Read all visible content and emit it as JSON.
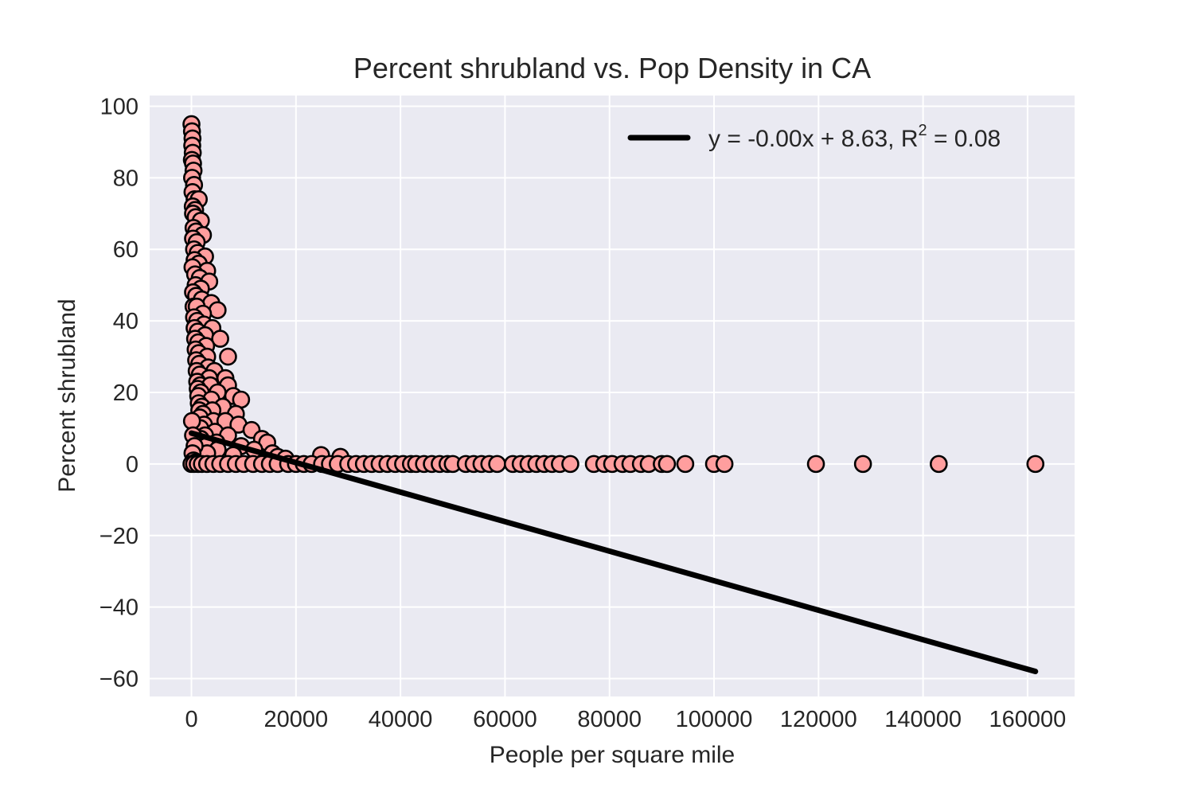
{
  "chart_data": {
    "type": "scatter",
    "title": "Percent shrubland vs. Pop Density in CA",
    "xlabel": "People per square mile",
    "ylabel": "Percent shrubland",
    "xlim": [
      -8000,
      169000
    ],
    "ylim": [
      -65,
      103
    ],
    "xticks": [
      0,
      20000,
      40000,
      60000,
      80000,
      100000,
      120000,
      140000,
      160000
    ],
    "yticks": [
      100,
      80,
      60,
      40,
      20,
      0,
      -20,
      -40,
      -60
    ],
    "xtick_labels": [
      "0",
      "20000",
      "40000",
      "60000",
      "80000",
      "100000",
      "120000",
      "140000",
      "160000"
    ],
    "ytick_labels": [
      "100",
      "80",
      "60",
      "40",
      "20",
      "0",
      "−20",
      "−40",
      "−60"
    ],
    "grid": true,
    "legend_position": "top-right",
    "legend": {
      "prefix": "y = -0.00x + 8.63, R",
      "superscript": "2",
      "suffix": " = 0.08"
    },
    "colors": {
      "background": "#eaeaf2",
      "marker_fill": "#ff9e9e",
      "marker_edge": "#000000",
      "fit_line": "#000000"
    },
    "fit_line": {
      "x": [
        0,
        161500
      ],
      "y": [
        8.63,
        -58
      ]
    },
    "series": [
      {
        "points": [
          [
            0,
            95
          ],
          [
            100,
            93
          ],
          [
            200,
            91
          ],
          [
            150,
            89
          ],
          [
            250,
            87
          ],
          [
            80,
            85
          ],
          [
            300,
            84
          ],
          [
            400,
            82
          ],
          [
            120,
            80
          ],
          [
            500,
            78
          ],
          [
            200,
            76
          ],
          [
            600,
            74
          ],
          [
            1400,
            74
          ],
          [
            250,
            72
          ],
          [
            700,
            71
          ],
          [
            300,
            70
          ],
          [
            800,
            69
          ],
          [
            1800,
            68
          ],
          [
            400,
            66
          ],
          [
            900,
            65
          ],
          [
            2200,
            64
          ],
          [
            300,
            63
          ],
          [
            1000,
            62
          ],
          [
            500,
            60
          ],
          [
            1200,
            59
          ],
          [
            2600,
            58
          ],
          [
            600,
            57
          ],
          [
            1400,
            56
          ],
          [
            200,
            55
          ],
          [
            3000,
            54
          ],
          [
            700,
            53
          ],
          [
            1600,
            52
          ],
          [
            3400,
            51
          ],
          [
            800,
            50
          ],
          [
            1800,
            49
          ],
          [
            300,
            48
          ],
          [
            900,
            47
          ],
          [
            2000,
            46
          ],
          [
            3800,
            45
          ],
          [
            400,
            44
          ],
          [
            1000,
            44
          ],
          [
            5000,
            43
          ],
          [
            2200,
            42
          ],
          [
            500,
            41
          ],
          [
            1100,
            40
          ],
          [
            2400,
            39
          ],
          [
            600,
            38
          ],
          [
            4000,
            38
          ],
          [
            1200,
            37
          ],
          [
            2600,
            36
          ],
          [
            700,
            35
          ],
          [
            5500,
            35
          ],
          [
            1300,
            34
          ],
          [
            2800,
            33
          ],
          [
            800,
            32
          ],
          [
            1400,
            31
          ],
          [
            3000,
            30
          ],
          [
            7000,
            30
          ],
          [
            900,
            29
          ],
          [
            1500,
            28
          ],
          [
            3200,
            27
          ],
          [
            1000,
            26
          ],
          [
            4400,
            26
          ],
          [
            1600,
            25
          ],
          [
            3400,
            24
          ],
          [
            6500,
            24
          ],
          [
            1100,
            23
          ],
          [
            1700,
            22
          ],
          [
            3600,
            22
          ],
          [
            7000,
            22
          ],
          [
            1200,
            21
          ],
          [
            1800,
            20
          ],
          [
            5000,
            20
          ],
          [
            8000,
            19
          ],
          [
            1300,
            19
          ],
          [
            3800,
            18
          ],
          [
            9500,
            18
          ],
          [
            1400,
            17
          ],
          [
            2000,
            16
          ],
          [
            6000,
            16
          ],
          [
            1500,
            15
          ],
          [
            4000,
            15
          ],
          [
            8500,
            14
          ],
          [
            2200,
            14
          ],
          [
            1600,
            13
          ],
          [
            4200,
            12
          ],
          [
            6500,
            12
          ],
          [
            2400,
            11
          ],
          [
            9000,
            11
          ],
          [
            1700,
            10
          ],
          [
            11500,
            9.5
          ],
          [
            4500,
            9
          ],
          [
            2600,
            8
          ],
          [
            7000,
            8
          ],
          [
            13500,
            7
          ],
          [
            1800,
            7
          ],
          [
            14500,
            6
          ],
          [
            4800,
            6
          ],
          [
            2800,
            5
          ],
          [
            9500,
            5
          ],
          [
            12000,
            4
          ],
          [
            5000,
            4
          ],
          [
            3000,
            3
          ],
          [
            15500,
            3
          ],
          [
            8000,
            2.5
          ],
          [
            16500,
            2
          ],
          [
            18000,
            1.5
          ],
          [
            24800,
            2.5
          ],
          [
            28500,
            2
          ],
          [
            100,
            12
          ],
          [
            300,
            8
          ],
          [
            600,
            5
          ],
          [
            200,
            3
          ],
          [
            400,
            1
          ],
          [
            800,
            0.5
          ],
          [
            0,
            0
          ],
          [
            500,
            0
          ],
          [
            1200,
            0
          ],
          [
            2000,
            0
          ],
          [
            3000,
            0
          ],
          [
            4200,
            0
          ],
          [
            5500,
            0
          ],
          [
            7000,
            0
          ],
          [
            8500,
            0
          ],
          [
            10000,
            0
          ],
          [
            11800,
            0
          ],
          [
            13500,
            0
          ],
          [
            15000,
            0
          ],
          [
            16500,
            0
          ],
          [
            18500,
            0
          ],
          [
            20000,
            0
          ],
          [
            21500,
            0
          ],
          [
            23000,
            0
          ],
          [
            25000,
            0
          ],
          [
            26500,
            0
          ],
          [
            28000,
            0
          ],
          [
            30000,
            0
          ],
          [
            31500,
            0
          ],
          [
            33000,
            0
          ],
          [
            34500,
            0
          ],
          [
            36000,
            0
          ],
          [
            37500,
            0
          ],
          [
            39000,
            0
          ],
          [
            40500,
            0
          ],
          [
            42000,
            0
          ],
          [
            43000,
            0
          ],
          [
            44500,
            0
          ],
          [
            46000,
            0
          ],
          [
            47500,
            0
          ],
          [
            49000,
            0
          ],
          [
            50000,
            0
          ],
          [
            52500,
            0
          ],
          [
            54000,
            0
          ],
          [
            55500,
            0
          ],
          [
            57000,
            0
          ],
          [
            58500,
            0
          ],
          [
            61500,
            0
          ],
          [
            63000,
            0
          ],
          [
            64500,
            0
          ],
          [
            66000,
            0
          ],
          [
            67500,
            0
          ],
          [
            69000,
            0
          ],
          [
            70500,
            0
          ],
          [
            72500,
            0
          ],
          [
            77000,
            0
          ],
          [
            79000,
            0
          ],
          [
            80500,
            0
          ],
          [
            82500,
            0
          ],
          [
            84000,
            0
          ],
          [
            86000,
            0
          ],
          [
            87500,
            0
          ],
          [
            90000,
            0
          ],
          [
            91000,
            0
          ],
          [
            94500,
            0
          ],
          [
            100000,
            0
          ],
          [
            102000,
            0
          ],
          [
            119500,
            0
          ],
          [
            128500,
            0
          ],
          [
            143000,
            0
          ],
          [
            161500,
            0
          ]
        ]
      }
    ]
  }
}
